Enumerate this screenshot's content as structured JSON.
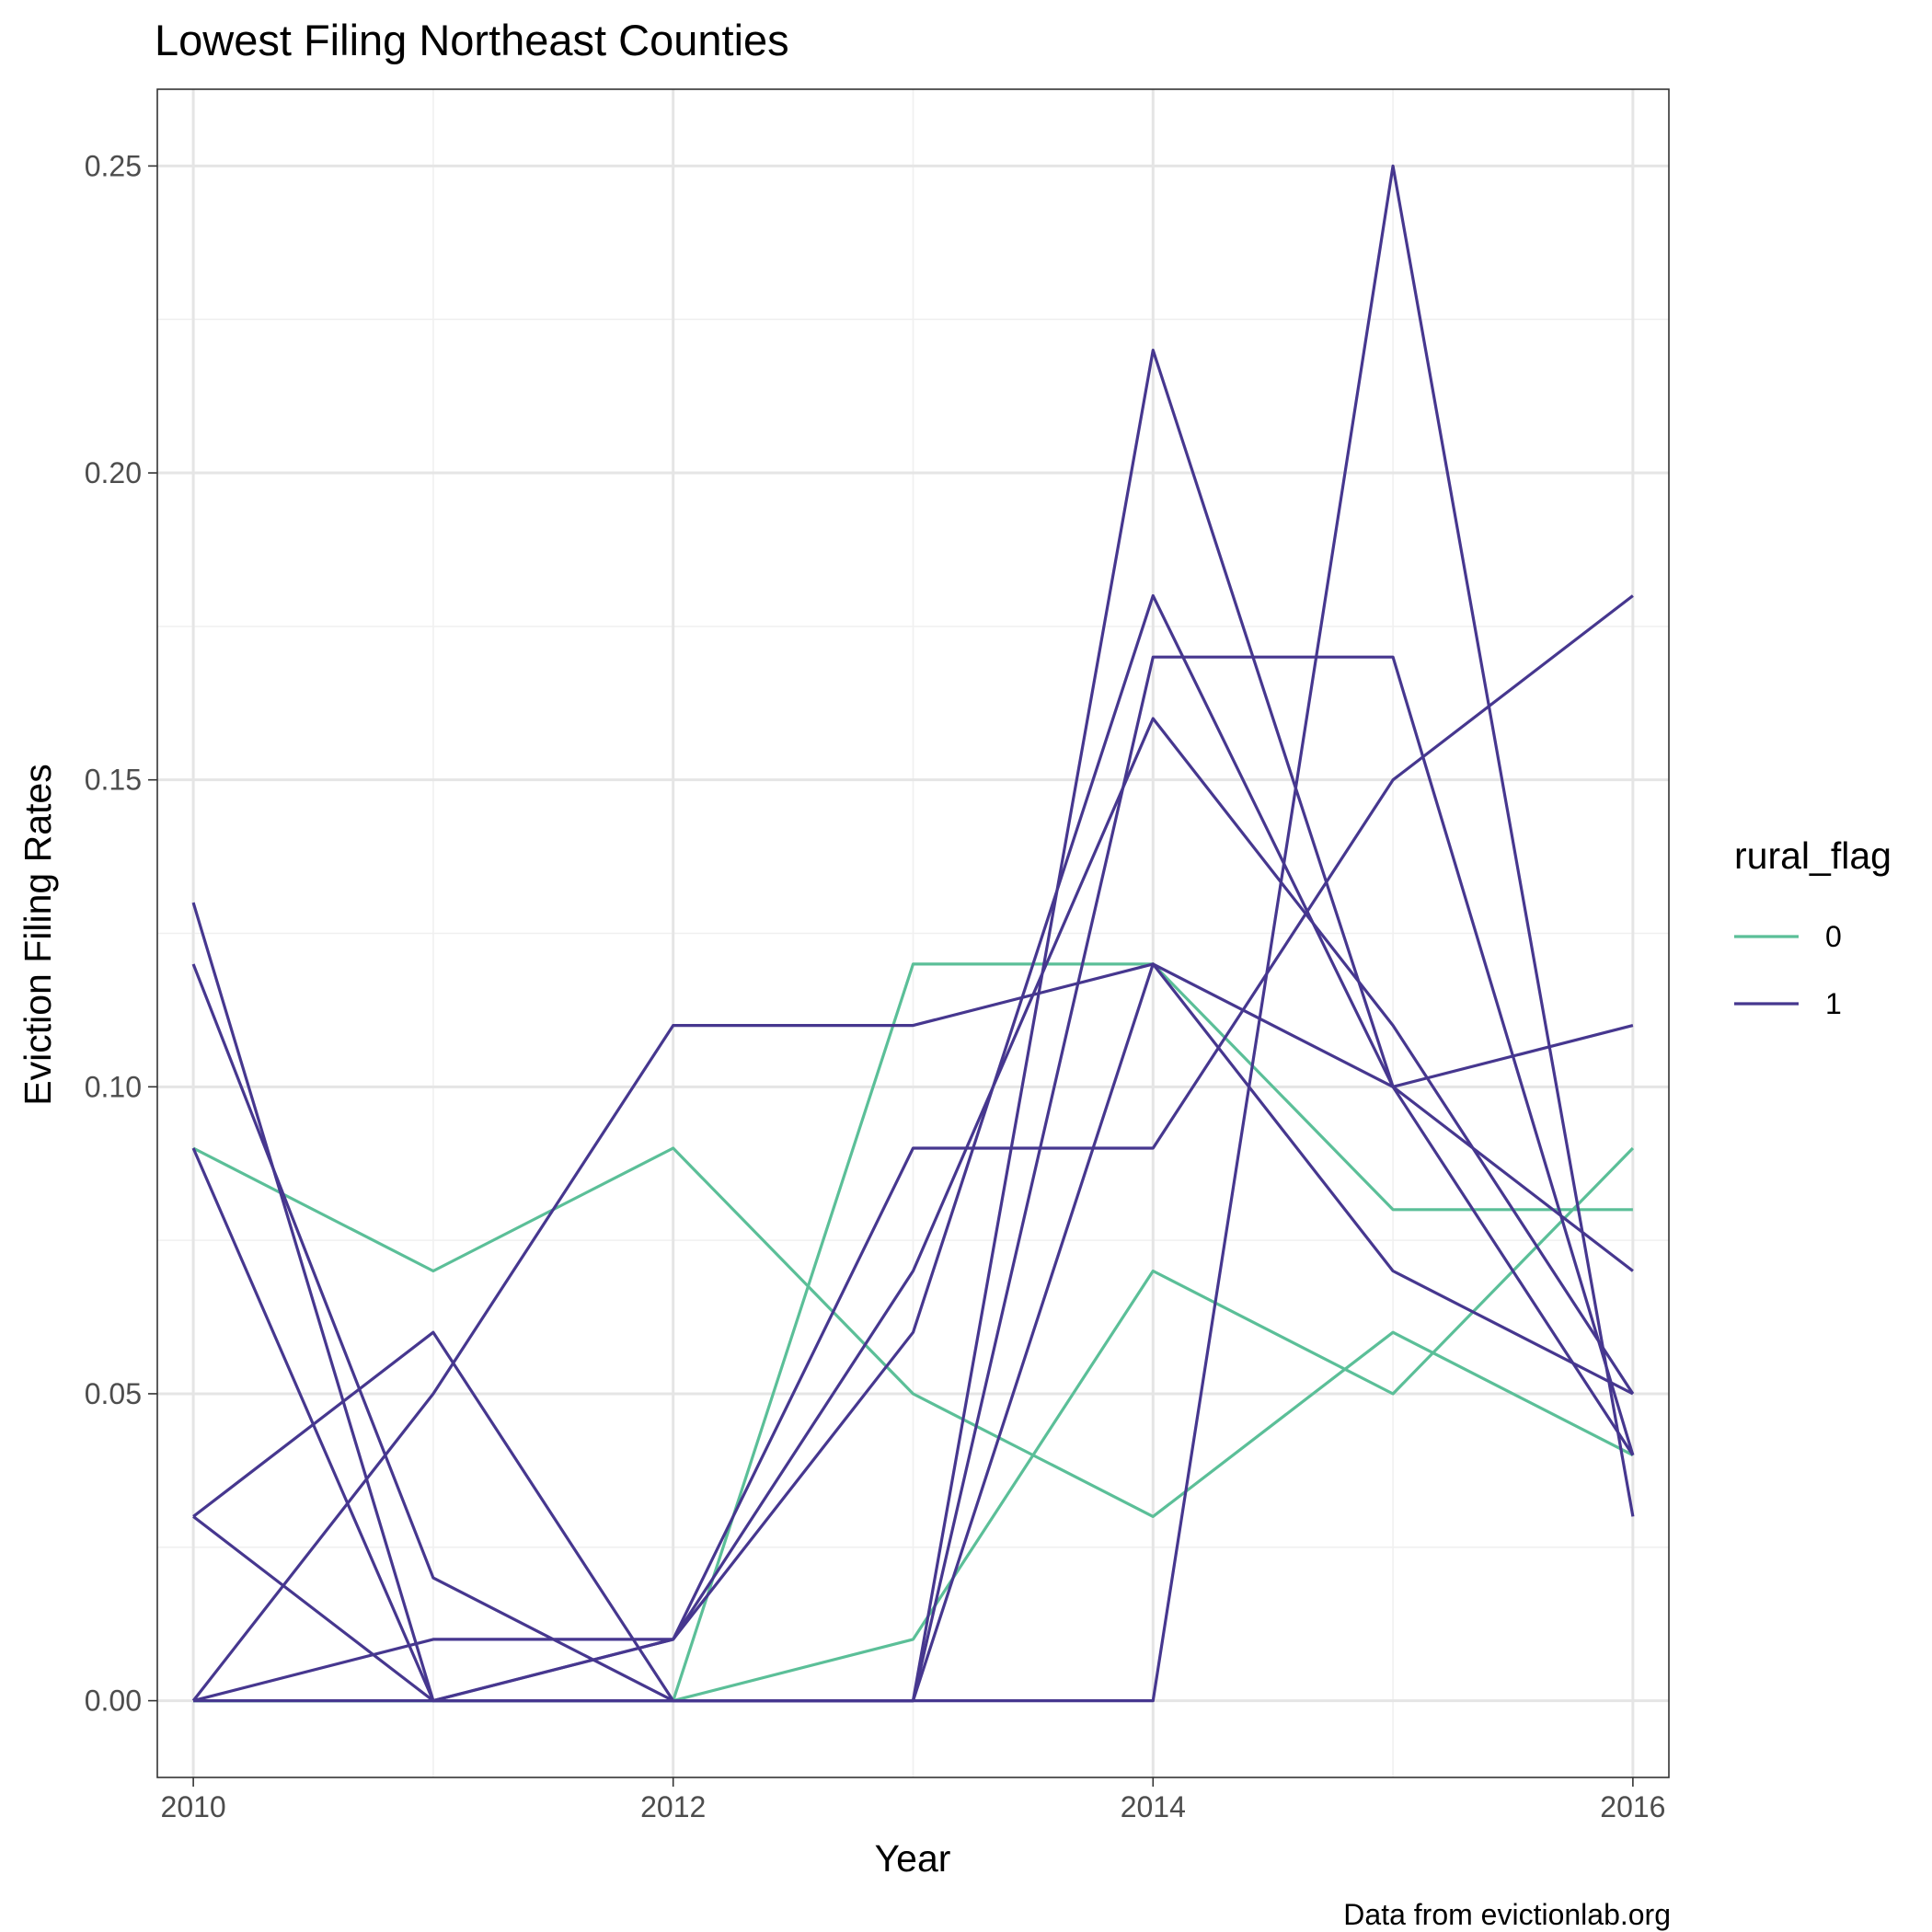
{
  "chart_data": {
    "type": "line",
    "title": "Lowest Filing Northeast Counties",
    "xlabel": "Year",
    "ylabel": "Eviction Filing Rates",
    "caption": "Data from evictionlab.org",
    "x": [
      2010,
      2011,
      2012,
      2013,
      2014,
      2015,
      2016
    ],
    "xlim": [
      2009.85,
      2016.15
    ],
    "ylim": [
      -0.0125,
      0.2625
    ],
    "x_ticks": [
      "2010",
      "2012",
      "2014",
      "2016"
    ],
    "y_ticks": [
      "0.00",
      "0.05",
      "0.10",
      "0.15",
      "0.20",
      "0.25"
    ],
    "grid": true,
    "legend": {
      "title": "rural_flag",
      "placement": "right",
      "entries": [
        {
          "label": "0",
          "color": "#5bbf98"
        },
        {
          "label": "1",
          "color": "#46378f"
        }
      ]
    },
    "colors": {
      "0": "#5bbf98",
      "1": "#46378f"
    },
    "series": [
      {
        "rural_flag": "0",
        "values": [
          0.09,
          0.07,
          0.09,
          0.05,
          0.03,
          0.06,
          0.04
        ]
      },
      {
        "rural_flag": "0",
        "values": [
          0.0,
          0.0,
          0.0,
          0.12,
          0.12,
          0.08,
          0.08
        ]
      },
      {
        "rural_flag": "0",
        "values": [
          0.0,
          0.0,
          0.0,
          0.01,
          0.07,
          0.05,
          0.09
        ]
      },
      {
        "rural_flag": "1",
        "values": [
          0.13,
          0.0,
          0.0,
          0.0,
          0.0,
          0.25,
          0.03
        ]
      },
      {
        "rural_flag": "1",
        "values": [
          0.12,
          0.02,
          0.0,
          0.0,
          0.22,
          0.1,
          0.11
        ]
      },
      {
        "rural_flag": "1",
        "values": [
          0.09,
          0.0,
          0.01,
          0.06,
          0.18,
          0.1,
          0.04
        ]
      },
      {
        "rural_flag": "1",
        "values": [
          0.03,
          0.06,
          0.0,
          0.0,
          0.17,
          0.17,
          0.04
        ]
      },
      {
        "rural_flag": "1",
        "values": [
          0.03,
          0.0,
          0.01,
          0.07,
          0.16,
          0.11,
          0.05
        ]
      },
      {
        "rural_flag": "1",
        "values": [
          0.0,
          0.05,
          0.11,
          0.11,
          0.12,
          0.07,
          0.05
        ]
      },
      {
        "rural_flag": "1",
        "values": [
          0.0,
          0.01,
          0.01,
          0.09,
          0.09,
          0.15,
          0.18
        ]
      },
      {
        "rural_flag": "1",
        "values": [
          0.0,
          0.0,
          0.0,
          0.0,
          0.12,
          0.1,
          0.07
        ]
      }
    ]
  }
}
